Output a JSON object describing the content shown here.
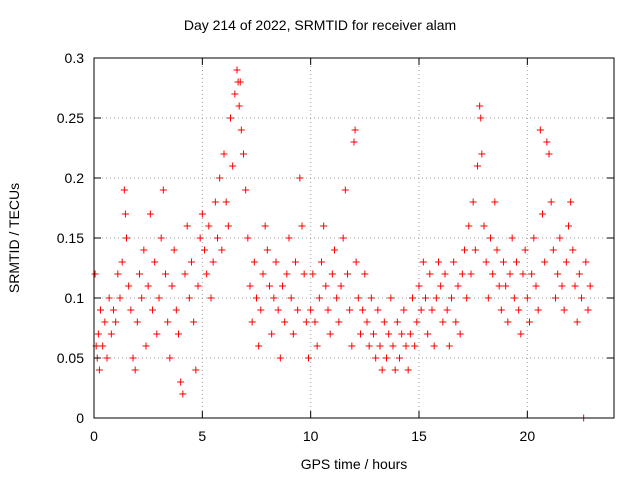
{
  "chart_data": {
    "type": "scatter",
    "title": "Day 214 of 2022, SRMTID for receiver alam",
    "xlabel": "GPS time / hours",
    "ylabel": "SRMTID / TECUs",
    "xlim": [
      0,
      24
    ],
    "ylim": [
      0,
      0.3
    ],
    "x_ticks": [
      0,
      5,
      10,
      15,
      20
    ],
    "x_tick_labels": [
      "0",
      "5",
      "10",
      "15",
      "20"
    ],
    "y_ticks": [
      0,
      0.05,
      0.1,
      0.15,
      0.2,
      0.25,
      0.3
    ],
    "y_tick_labels": [
      "0",
      "0.05",
      "0.1",
      "0.15",
      "0.2",
      "0.25",
      "0.3"
    ],
    "grid": true,
    "marker": "+",
    "color": "#ff0000",
    "series": [
      {
        "name": "SRMTID",
        "points": [
          [
            0.05,
            0.12
          ],
          [
            0.1,
            0.06
          ],
          [
            0.15,
            0.05
          ],
          [
            0.2,
            0.07
          ],
          [
            0.25,
            0.04
          ],
          [
            0.3,
            0.09
          ],
          [
            0.4,
            0.06
          ],
          [
            0.5,
            0.08
          ],
          [
            0.6,
            0.05
          ],
          [
            0.7,
            0.1
          ],
          [
            0.8,
            0.07
          ],
          [
            0.9,
            0.09
          ],
          [
            1.0,
            0.08
          ],
          [
            1.1,
            0.12
          ],
          [
            1.2,
            0.1
          ],
          [
            1.3,
            0.13
          ],
          [
            1.4,
            0.19
          ],
          [
            1.45,
            0.17
          ],
          [
            1.5,
            0.15
          ],
          [
            1.6,
            0.11
          ],
          [
            1.7,
            0.09
          ],
          [
            1.8,
            0.05
          ],
          [
            1.9,
            0.04
          ],
          [
            2.0,
            0.08
          ],
          [
            2.1,
            0.12
          ],
          [
            2.2,
            0.1
          ],
          [
            2.3,
            0.14
          ],
          [
            2.4,
            0.06
          ],
          [
            2.5,
            0.11
          ],
          [
            2.6,
            0.17
          ],
          [
            2.7,
            0.09
          ],
          [
            2.8,
            0.13
          ],
          [
            2.9,
            0.07
          ],
          [
            3.0,
            0.1
          ],
          [
            3.1,
            0.15
          ],
          [
            3.2,
            0.19
          ],
          [
            3.3,
            0.12
          ],
          [
            3.4,
            0.08
          ],
          [
            3.5,
            0.05
          ],
          [
            3.6,
            0.11
          ],
          [
            3.7,
            0.14
          ],
          [
            3.8,
            0.09
          ],
          [
            3.9,
            0.07
          ],
          [
            4.0,
            0.03
          ],
          [
            4.1,
            0.02
          ],
          [
            4.2,
            0.12
          ],
          [
            4.3,
            0.16
          ],
          [
            4.4,
            0.1
          ],
          [
            4.5,
            0.13
          ],
          [
            4.6,
            0.08
          ],
          [
            4.7,
            0.04
          ],
          [
            4.8,
            0.11
          ],
          [
            4.9,
            0.15
          ],
          [
            5.0,
            0.17
          ],
          [
            5.1,
            0.14
          ],
          [
            5.2,
            0.12
          ],
          [
            5.3,
            0.16
          ],
          [
            5.4,
            0.1
          ],
          [
            5.5,
            0.13
          ],
          [
            5.6,
            0.18
          ],
          [
            5.7,
            0.15
          ],
          [
            5.8,
            0.2
          ],
          [
            5.9,
            0.14
          ],
          [
            6.0,
            0.22
          ],
          [
            6.1,
            0.18
          ],
          [
            6.2,
            0.16
          ],
          [
            6.3,
            0.25
          ],
          [
            6.4,
            0.21
          ],
          [
            6.5,
            0.27
          ],
          [
            6.6,
            0.29
          ],
          [
            6.65,
            0.28
          ],
          [
            6.7,
            0.26
          ],
          [
            6.75,
            0.28
          ],
          [
            6.8,
            0.24
          ],
          [
            6.9,
            0.22
          ],
          [
            7.0,
            0.19
          ],
          [
            7.1,
            0.15
          ],
          [
            7.2,
            0.11
          ],
          [
            7.3,
            0.08
          ],
          [
            7.4,
            0.13
          ],
          [
            7.5,
            0.1
          ],
          [
            7.6,
            0.06
          ],
          [
            7.7,
            0.09
          ],
          [
            7.8,
            0.12
          ],
          [
            7.9,
            0.16
          ],
          [
            8.0,
            0.14
          ],
          [
            8.1,
            0.11
          ],
          [
            8.2,
            0.07
          ],
          [
            8.3,
            0.1
          ],
          [
            8.4,
            0.13
          ],
          [
            8.5,
            0.09
          ],
          [
            8.6,
            0.05
          ],
          [
            8.7,
            0.11
          ],
          [
            8.8,
            0.08
          ],
          [
            8.9,
            0.12
          ],
          [
            9.0,
            0.15
          ],
          [
            9.1,
            0.1
          ],
          [
            9.2,
            0.07
          ],
          [
            9.3,
            0.13
          ],
          [
            9.4,
            0.09
          ],
          [
            9.5,
            0.2
          ],
          [
            9.6,
            0.16
          ],
          [
            9.7,
            0.12
          ],
          [
            9.8,
            0.08
          ],
          [
            9.9,
            0.05
          ],
          [
            10.0,
            0.09
          ],
          [
            10.1,
            0.12
          ],
          [
            10.2,
            0.08
          ],
          [
            10.3,
            0.06
          ],
          [
            10.4,
            0.1
          ],
          [
            10.5,
            0.13
          ],
          [
            10.6,
            0.16
          ],
          [
            10.7,
            0.11
          ],
          [
            10.8,
            0.09
          ],
          [
            10.9,
            0.07
          ],
          [
            11.0,
            0.12
          ],
          [
            11.1,
            0.14
          ],
          [
            11.2,
            0.1
          ],
          [
            11.3,
            0.08
          ],
          [
            11.4,
            0.11
          ],
          [
            11.5,
            0.15
          ],
          [
            11.6,
            0.19
          ],
          [
            11.7,
            0.12
          ],
          [
            11.8,
            0.09
          ],
          [
            11.9,
            0.06
          ],
          [
            12.0,
            0.23
          ],
          [
            12.05,
            0.24
          ],
          [
            12.1,
            0.13
          ],
          [
            12.2,
            0.1
          ],
          [
            12.3,
            0.07
          ],
          [
            12.4,
            0.09
          ],
          [
            12.5,
            0.12
          ],
          [
            12.6,
            0.08
          ],
          [
            12.7,
            0.06
          ],
          [
            12.8,
            0.1
          ],
          [
            12.9,
            0.07
          ],
          [
            13.0,
            0.05
          ],
          [
            13.1,
            0.09
          ],
          [
            13.2,
            0.06
          ],
          [
            13.3,
            0.04
          ],
          [
            13.4,
            0.08
          ],
          [
            13.5,
            0.05
          ],
          [
            13.6,
            0.07
          ],
          [
            13.7,
            0.1
          ],
          [
            13.8,
            0.06
          ],
          [
            13.9,
            0.04
          ],
          [
            14.0,
            0.08
          ],
          [
            14.1,
            0.05
          ],
          [
            14.2,
            0.07
          ],
          [
            14.3,
            0.09
          ],
          [
            14.4,
            0.06
          ],
          [
            14.5,
            0.04
          ],
          [
            14.6,
            0.07
          ],
          [
            14.7,
            0.1
          ],
          [
            14.8,
            0.06
          ],
          [
            14.9,
            0.08
          ],
          [
            15.0,
            0.11
          ],
          [
            15.1,
            0.09
          ],
          [
            15.2,
            0.13
          ],
          [
            15.3,
            0.1
          ],
          [
            15.4,
            0.07
          ],
          [
            15.5,
            0.12
          ],
          [
            15.6,
            0.09
          ],
          [
            15.7,
            0.06
          ],
          [
            15.8,
            0.1
          ],
          [
            15.9,
            0.13
          ],
          [
            16.0,
            0.11
          ],
          [
            16.1,
            0.08
          ],
          [
            16.2,
            0.12
          ],
          [
            16.3,
            0.09
          ],
          [
            16.4,
            0.06
          ],
          [
            16.5,
            0.1
          ],
          [
            16.6,
            0.13
          ],
          [
            16.7,
            0.08
          ],
          [
            16.8,
            0.11
          ],
          [
            16.9,
            0.07
          ],
          [
            17.0,
            0.12
          ],
          [
            17.1,
            0.14
          ],
          [
            17.2,
            0.1
          ],
          [
            17.3,
            0.16
          ],
          [
            17.4,
            0.12
          ],
          [
            17.5,
            0.18
          ],
          [
            17.6,
            0.14
          ],
          [
            17.7,
            0.21
          ],
          [
            17.8,
            0.26
          ],
          [
            17.85,
            0.25
          ],
          [
            17.9,
            0.22
          ],
          [
            18.0,
            0.16
          ],
          [
            18.1,
            0.13
          ],
          [
            18.2,
            0.1
          ],
          [
            18.3,
            0.15
          ],
          [
            18.4,
            0.12
          ],
          [
            18.5,
            0.18
          ],
          [
            18.6,
            0.14
          ],
          [
            18.7,
            0.11
          ],
          [
            18.8,
            0.09
          ],
          [
            18.9,
            0.13
          ],
          [
            19.0,
            0.11
          ],
          [
            19.1,
            0.08
          ],
          [
            19.2,
            0.12
          ],
          [
            19.3,
            0.15
          ],
          [
            19.4,
            0.1
          ],
          [
            19.5,
            0.13
          ],
          [
            19.6,
            0.09
          ],
          [
            19.7,
            0.07
          ],
          [
            19.8,
            0.12
          ],
          [
            19.9,
            0.14
          ],
          [
            20.0,
            0.1
          ],
          [
            20.1,
            0.08
          ],
          [
            20.2,
            0.12
          ],
          [
            20.3,
            0.15
          ],
          [
            20.4,
            0.11
          ],
          [
            20.5,
            0.09
          ],
          [
            20.6,
            0.24
          ],
          [
            20.7,
            0.17
          ],
          [
            20.8,
            0.13
          ],
          [
            20.9,
            0.23
          ],
          [
            21.0,
            0.22
          ],
          [
            21.1,
            0.18
          ],
          [
            21.2,
            0.14
          ],
          [
            21.3,
            0.1
          ],
          [
            21.4,
            0.12
          ],
          [
            21.5,
            0.15
          ],
          [
            21.6,
            0.11
          ],
          [
            21.7,
            0.09
          ],
          [
            21.8,
            0.13
          ],
          [
            21.9,
            0.16
          ],
          [
            22.0,
            0.18
          ],
          [
            22.1,
            0.14
          ],
          [
            22.2,
            0.11
          ],
          [
            22.3,
            0.08
          ],
          [
            22.4,
            0.12
          ],
          [
            22.5,
            0.1
          ],
          [
            22.6,
            0.0
          ],
          [
            22.7,
            0.13
          ],
          [
            22.8,
            0.09
          ],
          [
            22.9,
            0.11
          ]
        ]
      }
    ]
  }
}
